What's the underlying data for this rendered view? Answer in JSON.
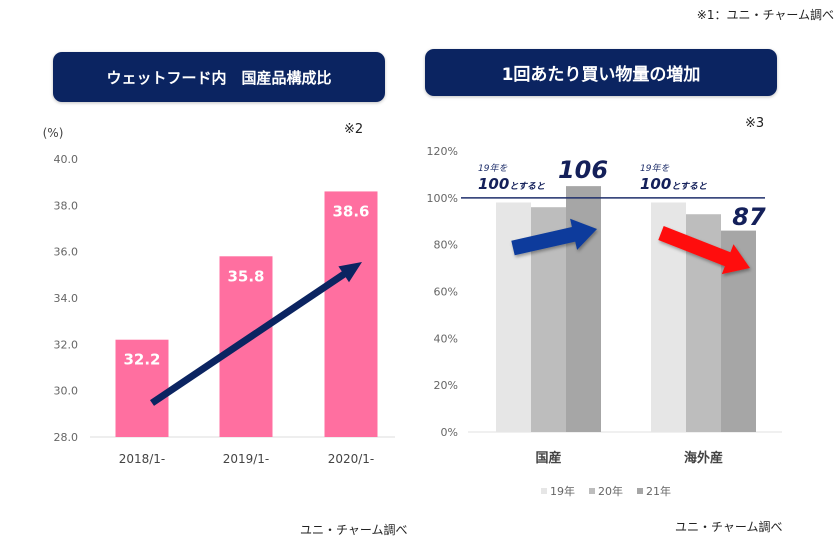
{
  "header_note": "※1：ユニ・チャーム調べ",
  "colors": {
    "title_bg": "#0b2461",
    "pink_bar": "#ff6fa0",
    "navy_arrow": "#0b2461",
    "blue_arrow": "#0a3a9c",
    "red_arrow": "#ff0f0f",
    "bar_19": "#e6e6e6",
    "bar_20": "#bdbdbd",
    "bar_21": "#a6a6a6"
  },
  "chart_data": [
    {
      "type": "bar",
      "title": "ウェットフード内　国産品構成比",
      "note": "※2",
      "ylabel": "(%)",
      "xlabel": "",
      "categories": [
        "2018/1-",
        "2019/1-",
        "2020/1-"
      ],
      "values": [
        32.2,
        35.8,
        38.6
      ],
      "value_labels": [
        "32.2",
        "35.8",
        "38.6"
      ],
      "ylim": [
        28.0,
        40.0
      ],
      "yticks": [
        "28.0",
        "30.0",
        "32.0",
        "34.0",
        "36.0",
        "38.0",
        "40.0"
      ],
      "annotation": "upward trend arrow",
      "source": "ユニ・チャーム調べ"
    },
    {
      "type": "bar",
      "title": "1回あたり買い物量の増加",
      "note": "※3",
      "xlabel": "",
      "ylabel": "",
      "categories": [
        "国産",
        "海外産"
      ],
      "series": [
        {
          "name": "19年",
          "values": [
            98,
            98
          ]
        },
        {
          "name": "20年",
          "values": [
            96,
            93
          ]
        },
        {
          "name": "21年",
          "values": [
            105,
            86
          ]
        }
      ],
      "ylim": [
        0,
        120
      ],
      "yticks": [
        "0%",
        "20%",
        "40%",
        "60%",
        "80%",
        "100%",
        "120%"
      ],
      "reference_line": 100,
      "annotations": [
        {
          "line1": "19年を",
          "line2_num": "100",
          "line2_text": "とすると",
          "value": "106",
          "trend": "up"
        },
        {
          "line1": "19年を",
          "line2_num": "100",
          "line2_text": "とすると",
          "value": "87",
          "trend": "down"
        }
      ],
      "legend_position": "bottom",
      "source": "ユニ・チャーム調べ"
    }
  ]
}
